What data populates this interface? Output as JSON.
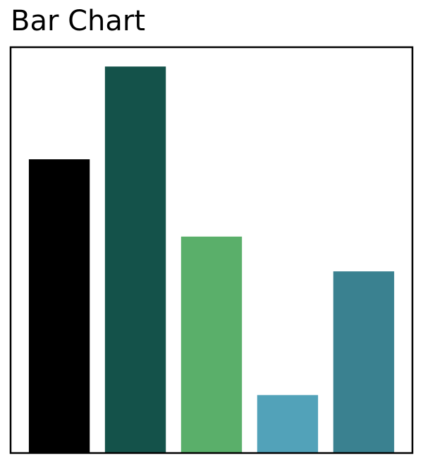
{
  "chart_data": {
    "type": "bar",
    "title": "Bar Chart",
    "series": [
      {
        "values": [
          7.6,
          10,
          5.6,
          1.5,
          4.7
        ],
        "colors": [
          "#000000",
          "#14524a",
          "#5aaf6a",
          "#52a2b9",
          "#3a8190"
        ]
      }
    ],
    "ylim": [
      0,
      10.5
    ]
  }
}
